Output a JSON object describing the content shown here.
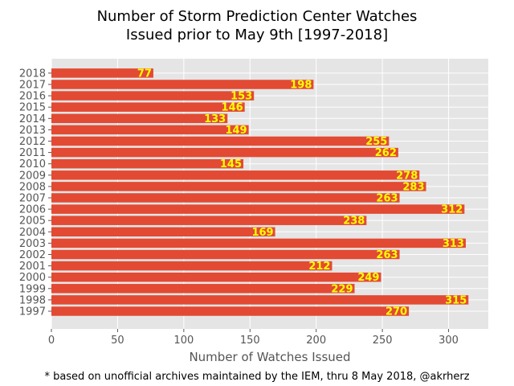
{
  "chart_data": {
    "type": "bar",
    "orientation": "horizontal",
    "title": [
      "Number of Storm Prediction Center Watches",
      "Issued prior to May 9th [1997-2018]"
    ],
    "xlabel": "Number of Watches Issued",
    "ylabel": "",
    "xlim": [
      0,
      330
    ],
    "xticks": [
      0,
      50,
      100,
      150,
      200,
      250,
      300
    ],
    "categories": [
      "1997",
      "1998",
      "1999",
      "2000",
      "2001",
      "2002",
      "2003",
      "2004",
      "2005",
      "2006",
      "2007",
      "2008",
      "2009",
      "2010",
      "2011",
      "2012",
      "2013",
      "2014",
      "2015",
      "2016",
      "2017",
      "2018"
    ],
    "values": [
      270,
      315,
      229,
      249,
      212,
      263,
      313,
      169,
      238,
      312,
      263,
      283,
      278,
      145,
      262,
      255,
      149,
      133,
      146,
      153,
      198,
      77
    ],
    "grid": true,
    "legend": "none",
    "colors": {
      "bar": "#e24a33",
      "label": "#ffff00",
      "background": "#e5e5e5",
      "grid": "#ffffff"
    }
  },
  "footnote": "* based on unofficial archives maintained by the IEM, thru 8 May 2018, @akrherz"
}
